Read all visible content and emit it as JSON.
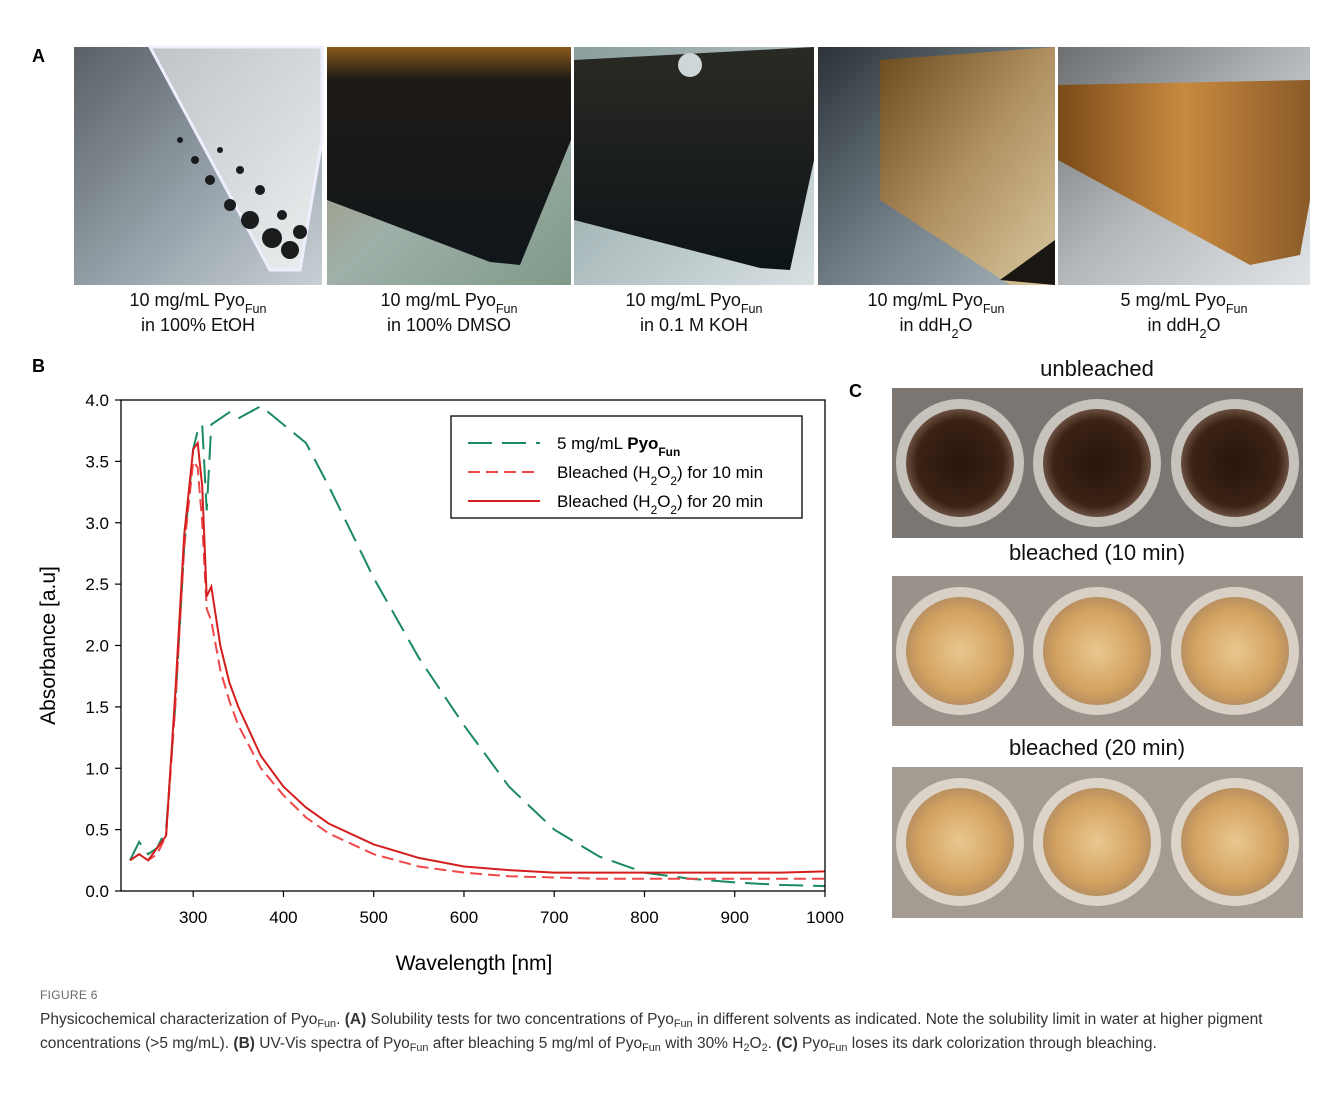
{
  "panels": {
    "a": {
      "label": "A",
      "photos": [
        {
          "caption": [
            [
              {
                "t": "10 mg/mL Pyo"
              },
              {
                "t": "Fun",
                "sub": true
              }
            ],
            [
              {
                "t": "in 100% EtOH"
              }
            ]
          ]
        },
        {
          "caption": [
            [
              {
                "t": "10 mg/mL Pyo"
              },
              {
                "t": "Fun",
                "sub": true
              }
            ],
            [
              {
                "t": "in 100% DMSO"
              }
            ]
          ]
        },
        {
          "caption": [
            [
              {
                "t": "10 mg/mL Pyo"
              },
              {
                "t": "Fun",
                "sub": true
              }
            ],
            [
              {
                "t": "in 0.1 M KOH"
              }
            ]
          ]
        },
        {
          "caption": [
            [
              {
                "t": "10 mg/mL Pyo"
              },
              {
                "t": "Fun",
                "sub": true
              }
            ],
            [
              {
                "t": "in ddH"
              },
              {
                "t": "2",
                "sub": true
              },
              {
                "t": "O"
              }
            ]
          ]
        },
        {
          "caption": [
            [
              {
                "t": "5 mg/mL Pyo"
              },
              {
                "t": "Fun",
                "sub": true
              }
            ],
            [
              {
                "t": "in ddH"
              },
              {
                "t": "2",
                "sub": true
              },
              {
                "t": "O"
              }
            ]
          ]
        }
      ]
    },
    "b": {
      "label": "B"
    },
    "c": {
      "label": "C",
      "photos": [
        {
          "title": "unbleached"
        },
        {
          "title": "bleached (10 min)"
        },
        {
          "title": "bleached (20 min)"
        }
      ]
    }
  },
  "chart_data": {
    "type": "line",
    "x_label": "Wavelength [nm]",
    "y_label": "Absorbance [a.u]",
    "xlim": [
      220,
      1000
    ],
    "ylim": [
      0,
      4
    ],
    "xticks": [
      300,
      400,
      500,
      600,
      700,
      800,
      900,
      1000
    ],
    "yticks": [
      {
        "value": 0,
        "label": "0.0"
      },
      0.5,
      {
        "value": 1,
        "label": "1.0"
      },
      1.5,
      {
        "value": 2,
        "label": "2.0"
      },
      2.5,
      {
        "value": 3,
        "label": "3.0"
      },
      3.5,
      {
        "value": 4,
        "label": "4.0"
      }
    ],
    "grid": false,
    "legend": "upper-right",
    "x": [
      230,
      240,
      250,
      260,
      270,
      280,
      290,
      300,
      305,
      310,
      315,
      320,
      330,
      340,
      350,
      375,
      400,
      425,
      450,
      500,
      550,
      600,
      650,
      700,
      750,
      800,
      850,
      900,
      950,
      1000
    ],
    "series": [
      {
        "name": [
          {
            "t": "5 mg/mL "
          },
          {
            "t": "Pyo",
            "b": true
          },
          {
            "t": "Fun",
            "b": true,
            "sub": true
          }
        ],
        "color": "#1b8a5f",
        "dash": "long",
        "values": [
          0.25,
          0.4,
          0.3,
          0.35,
          0.5,
          1.5,
          2.8,
          3.6,
          3.75,
          3.8,
          3.1,
          3.8,
          3.85,
          3.9,
          3.85,
          3.95,
          3.8,
          3.65,
          3.3,
          2.55,
          1.9,
          1.35,
          0.85,
          0.5,
          0.28,
          0.15,
          0.1,
          0.07,
          0.05,
          0.04
        ]
      },
      {
        "name": [
          {
            "t": "Bleached (H"
          },
          {
            "t": "2",
            "sub": true
          },
          {
            "t": "O"
          },
          {
            "t": "2",
            "sub": true
          },
          {
            "t": ") for 10 min"
          }
        ],
        "color": "#f04848",
        "dash": "short",
        "values": [
          0.25,
          0.3,
          0.25,
          0.3,
          0.45,
          1.5,
          2.8,
          3.5,
          3.45,
          3.0,
          2.3,
          2.2,
          1.8,
          1.55,
          1.35,
          1.0,
          0.78,
          0.6,
          0.47,
          0.3,
          0.2,
          0.15,
          0.12,
          0.11,
          0.1,
          0.1,
          0.1,
          0.1,
          0.1,
          0.1
        ]
      },
      {
        "name": [
          {
            "t": "Bleached (H"
          },
          {
            "t": "2",
            "sub": true
          },
          {
            "t": "O"
          },
          {
            "t": "2",
            "sub": true
          },
          {
            "t": ") for 20 min"
          }
        ],
        "color": "#d41e1e",
        "dash": "solid",
        "values": [
          0.25,
          0.3,
          0.25,
          0.35,
          0.45,
          1.6,
          2.9,
          3.6,
          3.65,
          3.3,
          2.4,
          2.48,
          2.0,
          1.7,
          1.5,
          1.1,
          0.85,
          0.68,
          0.55,
          0.38,
          0.27,
          0.2,
          0.17,
          0.15,
          0.15,
          0.15,
          0.15,
          0.15,
          0.15,
          0.16
        ]
      }
    ]
  },
  "caption": {
    "label": "FIGURE 6",
    "text": [
      {
        "t": "Physicochemical characterization of Pyo"
      },
      {
        "t": "Fun",
        "sub": true
      },
      {
        "t": ". "
      },
      {
        "t": "(A)",
        "b": true
      },
      {
        "t": " Solubility tests for two concentrations of Pyo"
      },
      {
        "t": "Fun",
        "sub": true
      },
      {
        "t": " in different solvents as indicated. Note the solubility limit in water at higher pigment concentrations (>5 mg/mL). "
      },
      {
        "t": "(B)",
        "b": true
      },
      {
        "t": " UV-Vis spectra of Pyo"
      },
      {
        "t": "Fun",
        "sub": true
      },
      {
        "t": " after bleaching 5 mg/ml of Pyo"
      },
      {
        "t": "Fun",
        "sub": true
      },
      {
        "t": " with 30% H"
      },
      {
        "t": "2",
        "sub": true
      },
      {
        "t": "O"
      },
      {
        "t": "2",
        "sub": true
      },
      {
        "t": ". "
      },
      {
        "t": "(C)",
        "b": true
      },
      {
        "t": " Pyo"
      },
      {
        "t": "Fun",
        "sub": true
      },
      {
        "t": " loses its dark colorization through bleaching."
      }
    ]
  }
}
